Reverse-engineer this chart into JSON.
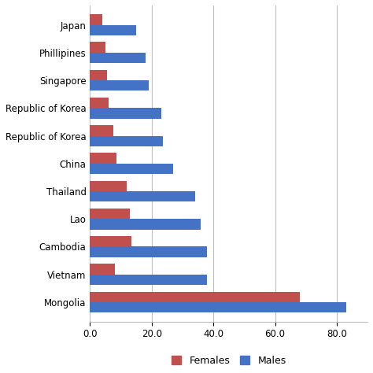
{
  "categories": [
    "Mongolia",
    "Vietnam",
    "Cambodia",
    "Lao",
    "Thailand",
    "China",
    "Republic of Korea",
    "Republic of Korea",
    "Singapore",
    "Phillipines",
    "Japan"
  ],
  "females": [
    68.0,
    8.0,
    13.5,
    13.0,
    12.0,
    8.5,
    7.5,
    6.0,
    5.5,
    5.0,
    4.0
  ],
  "males": [
    83.0,
    38.0,
    38.0,
    36.0,
    34.0,
    27.0,
    23.5,
    23.0,
    19.0,
    18.0,
    15.0
  ],
  "female_color": "#c0504d",
  "male_color": "#4472c4",
  "background_color": "#ffffff",
  "grid_color": "#bfbfbf",
  "xlim": [
    0,
    90
  ],
  "xticks": [
    0.0,
    20.0,
    40.0,
    60.0,
    80.0
  ],
  "bar_height": 0.38,
  "figsize": [
    4.74,
    4.74
  ],
  "dpi": 100,
  "label_fontsize": 8.5,
  "tick_fontsize": 8.5
}
